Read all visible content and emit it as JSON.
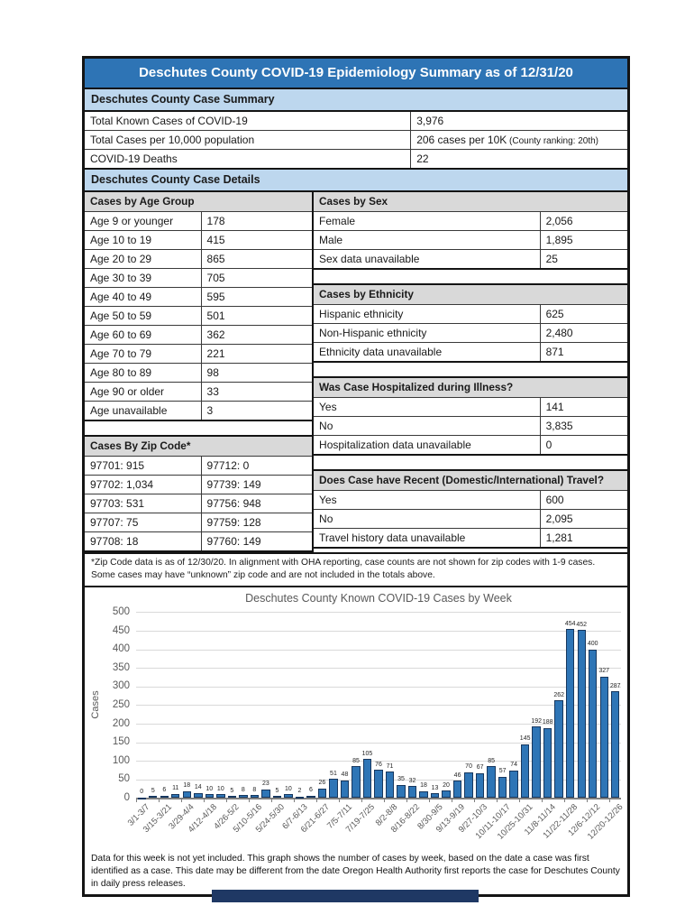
{
  "title": "Deschutes County COVID-19 Epidemiology Summary as of 12/31/20",
  "summary": {
    "header": "Deschutes County Case Summary",
    "rows": [
      {
        "label": "Total Known Cases of COVID-19",
        "value": "3,976",
        "note": ""
      },
      {
        "label": "Total Cases per 10,000 population",
        "value": "206 cases per 10K",
        "note": " (County ranking: 20th)"
      },
      {
        "label": "COVID-19 Deaths",
        "value": "22",
        "note": ""
      }
    ]
  },
  "details": {
    "header": "Deschutes County Case Details",
    "age": {
      "header": "Cases by Age Group",
      "rows": [
        [
          "Age 9 or younger",
          "178"
        ],
        [
          "Age 10 to 19",
          "415"
        ],
        [
          "Age 20 to 29",
          "865"
        ],
        [
          "Age 30 to 39",
          "705"
        ],
        [
          "Age 40 to 49",
          "595"
        ],
        [
          "Age 50 to 59",
          "501"
        ],
        [
          "Age 60 to 69",
          "362"
        ],
        [
          "Age 70 to 79",
          "221"
        ],
        [
          "Age 80 to 89",
          "98"
        ],
        [
          "Age 90 or older",
          "33"
        ],
        [
          "Age unavailable",
          "3"
        ]
      ]
    },
    "zip": {
      "header": "Cases By Zip Code*",
      "rows": [
        [
          "97701: 915",
          "97712: 0"
        ],
        [
          "97702: 1,034",
          "97739: 149"
        ],
        [
          "97703: 531",
          "97756: 948"
        ],
        [
          "97707: 75",
          "97759: 128"
        ],
        [
          "97708: 18",
          "97760: 149"
        ]
      ]
    },
    "sex": {
      "header": "Cases by Sex",
      "rows": [
        [
          "Female",
          "2,056"
        ],
        [
          "Male",
          "1,895"
        ],
        [
          "Sex data unavailable",
          "25"
        ]
      ]
    },
    "ethnicity": {
      "header": "Cases by Ethnicity",
      "rows": [
        [
          "Hispanic ethnicity",
          "625"
        ],
        [
          "Non-Hispanic ethnicity",
          "2,480"
        ],
        [
          "Ethnicity data unavailable",
          "871"
        ]
      ]
    },
    "hospitalized": {
      "header": "Was Case Hospitalized during Illness?",
      "rows": [
        [
          "Yes",
          "141"
        ],
        [
          "No",
          "3,835"
        ],
        [
          "Hospitalization data unavailable",
          "0"
        ]
      ]
    },
    "travel": {
      "header": "Does Case have Recent (Domestic/International) Travel?",
      "rows": [
        [
          "Yes",
          "600"
        ],
        [
          "No",
          "2,095"
        ],
        [
          "Travel history data unavailable",
          "1,281"
        ]
      ]
    }
  },
  "zip_footnote": [
    "*Zip Code data is as of 12/30/20. In alignment with OHA reporting, case counts are not shown for zip codes with 1-9 cases.",
    "Some cases may have “unknown” zip code and are not included in the totals above."
  ],
  "chart_data": {
    "type": "bar",
    "title": "Deschutes County Known COVID-19 Cases by Week",
    "xlabel": "",
    "ylabel": "Cases",
    "ylim": [
      0,
      500
    ],
    "ytick_step": 50,
    "grid": true,
    "legend": false,
    "xlabel_rotation": 45,
    "tick_every": 2,
    "values": [
      0,
      5,
      6,
      11,
      18,
      14,
      10,
      10,
      5,
      8,
      8,
      23,
      5,
      10,
      2,
      6,
      26,
      51,
      48,
      85,
      105,
      76,
      71,
      35,
      32,
      18,
      13,
      20,
      46,
      70,
      67,
      85,
      57,
      74,
      145,
      192,
      188,
      262,
      454,
      452,
      400,
      327,
      287
    ],
    "tick_labels": [
      "3/1-3/7",
      "3/15-3/21",
      "3/29-4/4",
      "4/12-4/18",
      "4/26-5/2",
      "5/10-5/16",
      "5/24-5/30",
      "6/7-6/13",
      "6/21-6/27",
      "7/5-7/11",
      "7/19-7/25",
      "8/2-8/8",
      "8/16-8/22",
      "8/30-9/5",
      "9/13-9/19",
      "9/27-10/3",
      "10/11-10/17",
      "10/25-10/31",
      "11/8-11/14",
      "11/22-11/28",
      "12/6-12/12",
      "12/20-12/26"
    ],
    "bar_color": "#2E75B6",
    "bar_outline": "#17375E"
  },
  "chart_note": "Data for this week is not yet included. This graph shows the number of cases by week, based on the date a case was first identified as a case. This date may be different from the date Oregon Health Authority first reports the case for Deschutes County in daily press releases.",
  "colors": {
    "title_bar": "#2E74B5",
    "section_header_bg": "#BDD7EE",
    "table_header_bg": "#D9D9D9",
    "footer_bar": "#1F3864"
  }
}
